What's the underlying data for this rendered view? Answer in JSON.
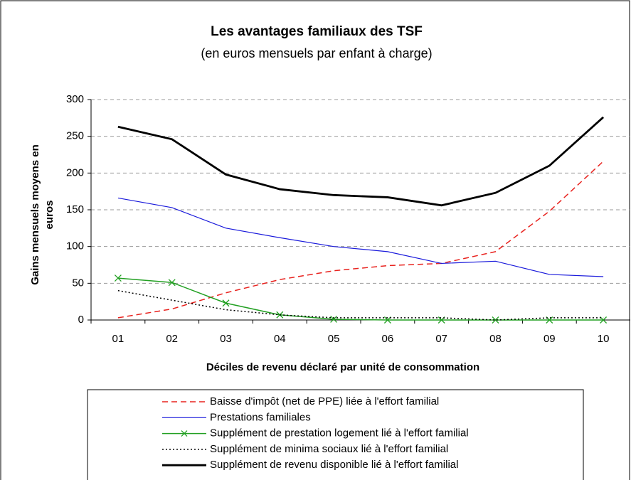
{
  "chart_data": {
    "type": "line",
    "title": "Les avantages familiaux des TSF",
    "subtitle": "(en euros mensuels par enfant à charge)",
    "xlabel": "Déciles de revenu déclaré par unité de consommation",
    "ylabel": "Gains mensuels moyens en euros",
    "categories": [
      "01",
      "02",
      "03",
      "04",
      "05",
      "06",
      "07",
      "08",
      "09",
      "10"
    ],
    "ylim": [
      0,
      300
    ],
    "yticks": [
      0,
      50,
      100,
      150,
      200,
      250,
      300
    ],
    "grid": true,
    "series": [
      {
        "name": "Baisse d'impôt (net de PPE) liée à l'effort familial",
        "color": "#e8231f",
        "dash": "8,5",
        "width": 1.5,
        "values": [
          3,
          15,
          37,
          55,
          67,
          74,
          77,
          93,
          148,
          216
        ]
      },
      {
        "name": "Prestations familiales",
        "color": "#1a1adb",
        "dash": "",
        "width": 1.2,
        "values": [
          166,
          153,
          125,
          112,
          100,
          93,
          77,
          80,
          62,
          59
        ]
      },
      {
        "name": "Supplément de prestation logement lié à l'effort familial",
        "color": "#22a022",
        "dash": "",
        "width": 1.5,
        "marker": "x",
        "values": [
          57,
          51,
          23,
          7,
          1,
          0,
          0,
          0,
          0,
          0
        ]
      },
      {
        "name": "Supplément de minima sociaux lié à l'effort familial",
        "color": "#000000",
        "dash": "2,3",
        "width": 1.5,
        "values": [
          40,
          27,
          14,
          7,
          3,
          3,
          3,
          0,
          3,
          3
        ]
      },
      {
        "name": "Supplément de revenu disponible lié à l'effort familial",
        "color": "#000000",
        "dash": "",
        "width": 2.8,
        "values": [
          263,
          246,
          198,
          178,
          170,
          167,
          156,
          173,
          210,
          276
        ]
      }
    ]
  }
}
